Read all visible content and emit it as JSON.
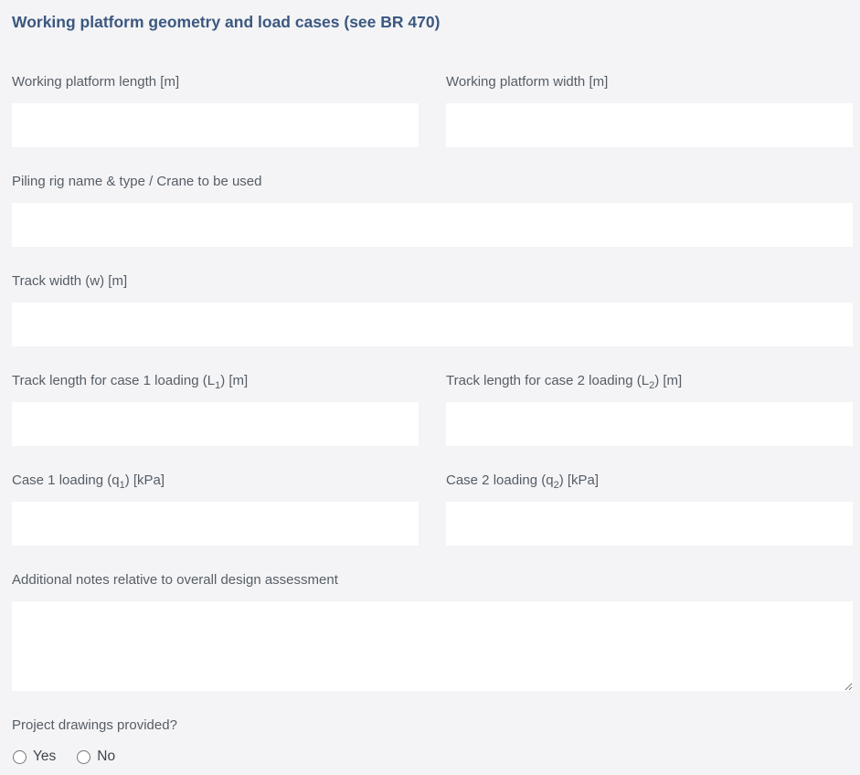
{
  "section": {
    "title": "Working platform geometry and load cases (see BR 470)"
  },
  "fields": {
    "platform_length": {
      "label": "Working platform length [m]",
      "value": ""
    },
    "platform_width": {
      "label": "Working platform width [m]",
      "value": ""
    },
    "rig_or_crane": {
      "label": "Piling rig name & type / Crane to be used",
      "value": ""
    },
    "track_width": {
      "label": "Track width (w) [m]",
      "value": ""
    },
    "track_length_case1": {
      "label_pre": "Track length for case 1 loading (L",
      "label_sub": "1",
      "label_post": ") [m]",
      "value": ""
    },
    "track_length_case2": {
      "label_pre": "Track length for case 2 loading (L",
      "label_sub": "2",
      "label_post": ") [m]",
      "value": ""
    },
    "case1_loading": {
      "label_pre": "Case 1 loading (q",
      "label_sub": "1",
      "label_post": ") [kPa]",
      "value": ""
    },
    "case2_loading": {
      "label_pre": "Case 2 loading (q",
      "label_sub": "2",
      "label_post": ") [kPa]",
      "value": ""
    },
    "additional_notes": {
      "label": "Additional notes relative to overall design assessment",
      "value": ""
    }
  },
  "drawings_provided": {
    "label": "Project drawings provided?",
    "options": [
      {
        "label": "Yes",
        "checked": false
      },
      {
        "label": "No",
        "checked": false
      }
    ]
  },
  "colors": {
    "background": "#f4f4f6",
    "title": "#3b5880",
    "field_label": "#565d66",
    "field_background": "#ffffff"
  }
}
